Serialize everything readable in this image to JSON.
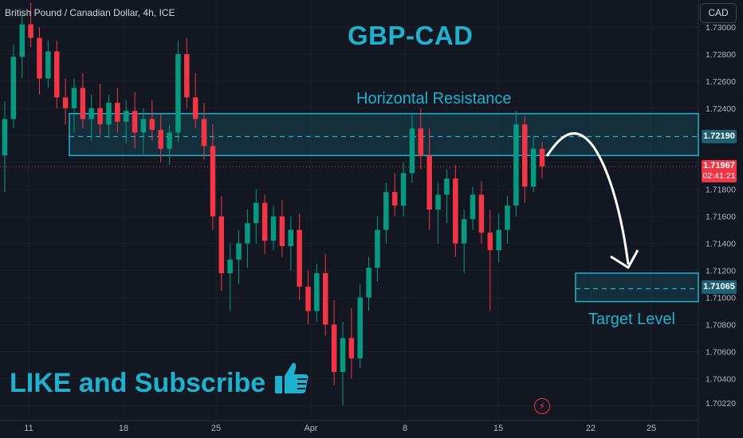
{
  "header": {
    "instrument": "British Pound / Canadian Dollar, 4h, ICE",
    "currency_button": "CAD"
  },
  "annotations": {
    "title": "GBP-CAD",
    "resistance_label": "Horizontal Resistance",
    "target_label": "Target Level",
    "cta": "LIKE and Subscribe"
  },
  "price_tags": {
    "resistance": "1.72190",
    "current": "1.71967",
    "countdown": "02:41:21",
    "target": "1.71065"
  },
  "colors": {
    "background": "#131722",
    "up": "#089981",
    "down": "#f23645",
    "accent": "#1fb2cf",
    "zone": "#1e5f74"
  },
  "chart_data": {
    "type": "candlestick",
    "title": "GBP-CAD",
    "ylim": [
      1.7014,
      1.7316
    ],
    "y_ticks": [
      "1.73000",
      "1.72800",
      "1.72600",
      "1.72400",
      "1.72190",
      "1.71967",
      "1.71800",
      "1.71600",
      "1.71400",
      "1.71200",
      "1.71065",
      "1.71000",
      "1.70800",
      "1.70600",
      "1.70400",
      "1.70220"
    ],
    "y_tick_values": [
      1.73,
      1.728,
      1.726,
      1.724,
      1.7219,
      1.71967,
      1.718,
      1.716,
      1.714,
      1.712,
      1.71065,
      1.71,
      1.708,
      1.706,
      1.704,
      1.7022
    ],
    "x_ticks": [
      "11",
      "18",
      "25",
      "Apr",
      "8",
      "15",
      "22",
      "25"
    ],
    "resistance_zone": [
      1.7205,
      1.7236
    ],
    "resistance_level": 1.7219,
    "target_zone": [
      1.7097,
      1.7118
    ],
    "target_level": 1.71065,
    "current_price": 1.71967,
    "candles": [
      [
        1.7205,
        1.7245,
        1.7178,
        1.7232
      ],
      [
        1.7232,
        1.7287,
        1.7225,
        1.7278
      ],
      [
        1.7278,
        1.7312,
        1.7262,
        1.7302
      ],
      [
        1.7302,
        1.7318,
        1.7285,
        1.7292
      ],
      [
        1.7292,
        1.73,
        1.725,
        1.7262
      ],
      [
        1.7262,
        1.729,
        1.7255,
        1.7282
      ],
      [
        1.7282,
        1.729,
        1.724,
        1.7248
      ],
      [
        1.7248,
        1.7262,
        1.7228,
        1.724
      ],
      [
        1.724,
        1.7262,
        1.7222,
        1.7255
      ],
      [
        1.7255,
        1.7266,
        1.7225,
        1.7232
      ],
      [
        1.7232,
        1.725,
        1.7216,
        1.724
      ],
      [
        1.724,
        1.7258,
        1.722,
        1.7228
      ],
      [
        1.7228,
        1.725,
        1.7218,
        1.7244
      ],
      [
        1.7244,
        1.7255,
        1.7222,
        1.723
      ],
      [
        1.723,
        1.7246,
        1.7214,
        1.7238
      ],
      [
        1.7238,
        1.7252,
        1.721,
        1.7222
      ],
      [
        1.7222,
        1.724,
        1.7206,
        1.7232
      ],
      [
        1.7232,
        1.7246,
        1.7216,
        1.7224
      ],
      [
        1.7224,
        1.7236,
        1.72,
        1.721
      ],
      [
        1.721,
        1.7228,
        1.7198,
        1.7222
      ],
      [
        1.7222,
        1.729,
        1.7215,
        1.728
      ],
      [
        1.728,
        1.7292,
        1.724,
        1.7248
      ],
      [
        1.7248,
        1.7266,
        1.7225,
        1.7232
      ],
      [
        1.7232,
        1.7244,
        1.7202,
        1.7212
      ],
      [
        1.7212,
        1.7228,
        1.715,
        1.716
      ],
      [
        1.716,
        1.7175,
        1.7105,
        1.7118
      ],
      [
        1.7118,
        1.714,
        1.709,
        1.7128
      ],
      [
        1.7128,
        1.715,
        1.711,
        1.714
      ],
      [
        1.714,
        1.7165,
        1.7122,
        1.7155
      ],
      [
        1.7155,
        1.718,
        1.714,
        1.717
      ],
      [
        1.717,
        1.7176,
        1.7132,
        1.7142
      ],
      [
        1.7142,
        1.7168,
        1.7135,
        1.716
      ],
      [
        1.716,
        1.7172,
        1.713,
        1.7138
      ],
      [
        1.7138,
        1.716,
        1.712,
        1.715
      ],
      [
        1.715,
        1.7162,
        1.7098,
        1.7108
      ],
      [
        1.7108,
        1.712,
        1.708,
        1.709
      ],
      [
        1.709,
        1.7125,
        1.7082,
        1.7118
      ],
      [
        1.7118,
        1.7132,
        1.7072,
        1.708
      ],
      [
        1.708,
        1.7098,
        1.7035,
        1.7045
      ],
      [
        1.7045,
        1.7082,
        1.702,
        1.707
      ],
      [
        1.707,
        1.7092,
        1.704,
        1.7055
      ],
      [
        1.7055,
        1.711,
        1.7048,
        1.71
      ],
      [
        1.71,
        1.713,
        1.709,
        1.7122
      ],
      [
        1.7122,
        1.716,
        1.7112,
        1.715
      ],
      [
        1.715,
        1.7185,
        1.714,
        1.7178
      ],
      [
        1.7178,
        1.7192,
        1.716,
        1.7168
      ],
      [
        1.7168,
        1.72,
        1.716,
        1.7192
      ],
      [
        1.7192,
        1.7235,
        1.7185,
        1.7225
      ],
      [
        1.7225,
        1.724,
        1.7195,
        1.7205
      ],
      [
        1.7205,
        1.7225,
        1.715,
        1.7165
      ],
      [
        1.7165,
        1.7185,
        1.714,
        1.7176
      ],
      [
        1.7176,
        1.7195,
        1.7155,
        1.7188
      ],
      [
        1.7188,
        1.7198,
        1.713,
        1.714
      ],
      [
        1.714,
        1.7165,
        1.7118,
        1.7158
      ],
      [
        1.7158,
        1.7182,
        1.715,
        1.7176
      ],
      [
        1.7176,
        1.7186,
        1.714,
        1.7148
      ],
      [
        1.7148,
        1.7165,
        1.709,
        1.7135
      ],
      [
        1.7135,
        1.7162,
        1.7126,
        1.715
      ],
      [
        1.715,
        1.7175,
        1.714,
        1.7168
      ],
      [
        1.7168,
        1.7238,
        1.716,
        1.7228
      ],
      [
        1.7228,
        1.7234,
        1.717,
        1.7182
      ],
      [
        1.7182,
        1.722,
        1.7178,
        1.721
      ],
      [
        1.721,
        1.7215,
        1.7188,
        1.7197
      ]
    ]
  }
}
